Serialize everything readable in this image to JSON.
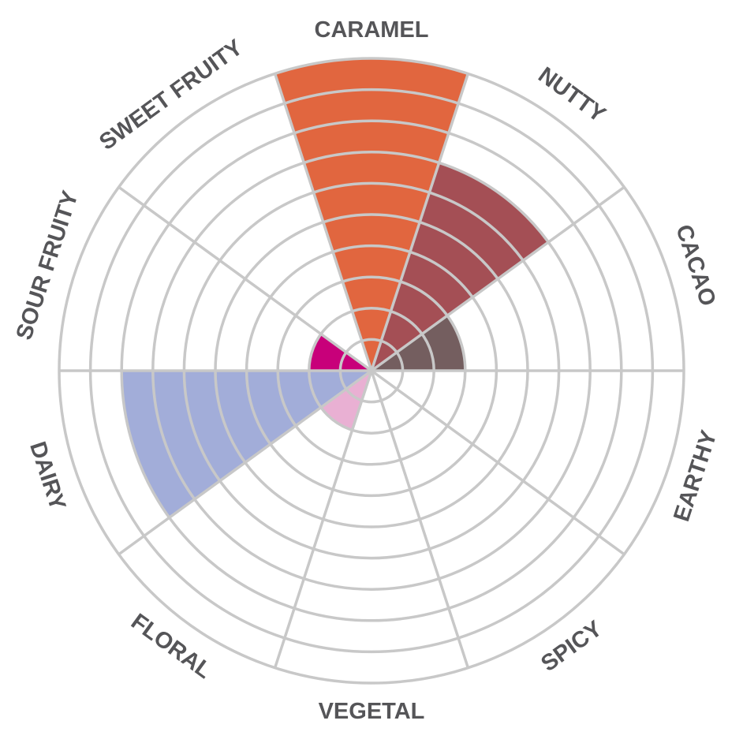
{
  "chart_data": {
    "type": "polar-area",
    "categories": [
      "CARAMEL",
      "NUTTY",
      "CACAO",
      "EARTHY",
      "SPICY",
      "VEGETAL",
      "FLORAL",
      "DAIRY",
      "SOUR FRUITY",
      "SWEET FRUITY"
    ],
    "values": [
      10,
      7,
      3,
      0,
      0,
      0,
      2,
      8,
      2,
      0
    ],
    "max": 10,
    "rings": 10,
    "grid": true,
    "legend": "none",
    "colors": [
      "#e1663f",
      "#a44f55",
      "#745e5f",
      "#ffffff",
      "#ffffff",
      "#ffffff",
      "#e9b0d3",
      "#a2add9",
      "#c8007a",
      "#ffffff"
    ],
    "grid_color": "#c8c8c8",
    "label_color": "#555558"
  }
}
